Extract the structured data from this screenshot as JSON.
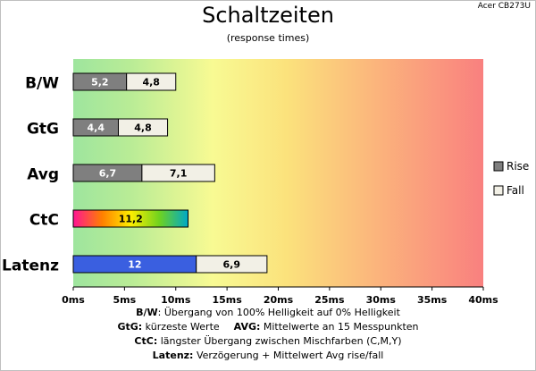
{
  "header": {
    "title": "Schaltzeiten",
    "subtitle": "(response times)",
    "model": "Acer CB273U"
  },
  "chart_data": {
    "type": "bar",
    "orientation": "horizontal",
    "stacked": true,
    "title": "Schaltzeiten",
    "subtitle": "(response times)",
    "categories": [
      "B/W",
      "GtG",
      "Avg",
      "CtC",
      "Latenz"
    ],
    "xlim": [
      0,
      40
    ],
    "x_ticks": [
      "0ms",
      "5ms",
      "10ms",
      "15ms",
      "20ms",
      "25ms",
      "30ms",
      "35ms",
      "40ms"
    ],
    "grid": false,
    "background": "gradient green-yellow-red",
    "legend": {
      "position": "right",
      "entries": [
        "Rise",
        "Fall"
      ]
    },
    "series": [
      {
        "name": "Rise",
        "color": "#7f7f7f",
        "values": [
          5.2,
          4.4,
          6.7,
          null,
          null
        ]
      },
      {
        "name": "Fall",
        "color": "#f2f0e6",
        "values": [
          4.8,
          4.8,
          7.1,
          null,
          6.9
        ]
      }
    ],
    "special_bars": [
      {
        "category": "CtC",
        "value": 11.2,
        "label": "11,2",
        "fill": "rainbow"
      },
      {
        "category": "Latenz",
        "value": 12,
        "label": "12",
        "color": "#3a5fe0"
      }
    ],
    "labels": {
      "B/W": [
        "5,2",
        "4,8"
      ],
      "GtG": [
        "4,4",
        "4,8"
      ],
      "Avg": [
        "6,7",
        "7,1"
      ],
      "Latenz": [
        "12",
        "6,9"
      ]
    }
  },
  "footnotes": [
    {
      "key": "B/W",
      "text": ": Übergang von 100% Helligkeit auf 0% Helligkeit"
    },
    {
      "key": "GtG:",
      "text": " kürzeste Werte",
      "key2": "AVG:",
      "text2": " Mittelwerte an 15 Messpunkten"
    },
    {
      "key": "CtC:",
      "text": " längster Übergang zwischen Mischfarben (C,M,Y)"
    },
    {
      "key": "Latenz:",
      "text": " Verzögerung + Mittelwert Avg rise/fall"
    }
  ]
}
